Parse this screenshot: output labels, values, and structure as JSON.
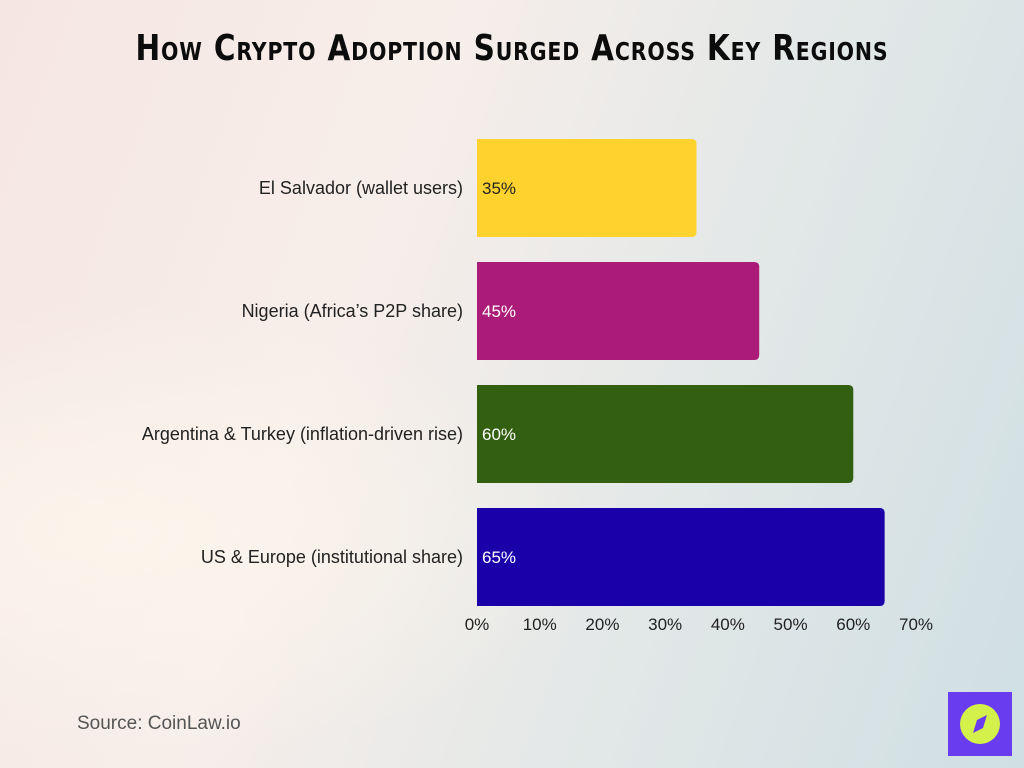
{
  "chart_data": {
    "type": "bar",
    "orientation": "horizontal",
    "title": "How Crypto Adoption Surged Across Key Regions",
    "categories": [
      "El Salvador (wallet users)",
      "Nigeria (Africa’s P2P share)",
      "Argentina & Turkey (inflation-driven rise)",
      "US & Europe (institutional share)"
    ],
    "values": [
      35,
      45,
      60,
      65
    ],
    "value_labels": [
      "35%",
      "45%",
      "60%",
      "65%"
    ],
    "colors": [
      "#ffd22e",
      "#ab1c78",
      "#336010",
      "#1a00a8"
    ],
    "label_colors": [
      "#222222",
      "#ffffff",
      "#ffffff",
      "#ffffff"
    ],
    "xlim": [
      0,
      70
    ],
    "xticks": [
      "0%",
      "10%",
      "20%",
      "30%",
      "40%",
      "50%",
      "60%",
      "70%"
    ],
    "grid": false,
    "xlabel": "",
    "ylabel": ""
  },
  "source": "Source: CoinLaw.io",
  "logo": {
    "icon": "compass-icon",
    "bg": "#6a3cf0",
    "fg": "#d4f04a"
  }
}
